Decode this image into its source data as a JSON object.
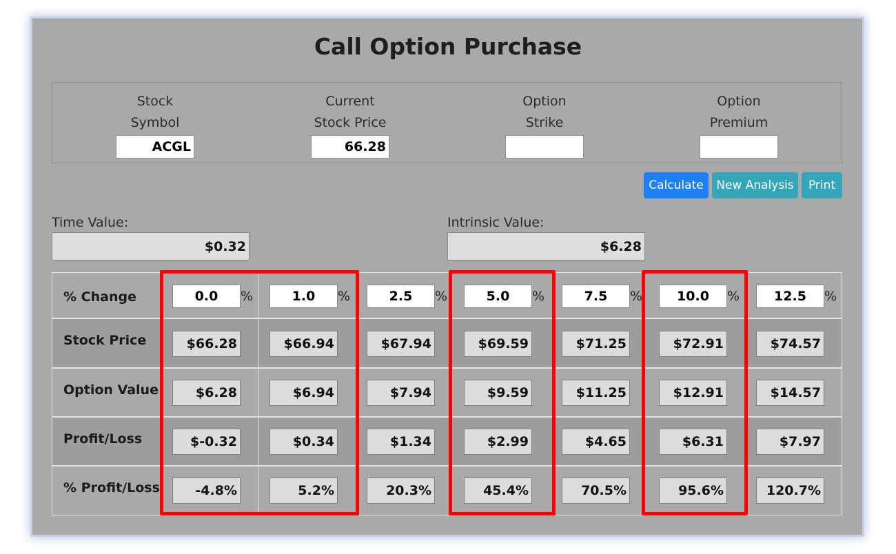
{
  "title": "Call Option Purchase",
  "inputs": [
    {
      "label1": "Stock",
      "label2": "Symbol",
      "value": "ACGL"
    },
    {
      "label1": "Current",
      "label2": "Stock Price",
      "value": "66.28"
    },
    {
      "label1": "Option",
      "label2": "Strike",
      "value": ""
    },
    {
      "label1": "Option",
      "label2": "Premium",
      "value": ""
    }
  ],
  "buttons": {
    "calculate": "Calculate",
    "new_analysis": "New Analysis",
    "print": "Print"
  },
  "time_value": {
    "label": "Time Value:",
    "value": "$0.32"
  },
  "intrinsic_value": {
    "label": "Intrinsic Value:",
    "value": "$6.28"
  },
  "table": {
    "row_labels": [
      "% Change",
      "Stock Price",
      "Option Value",
      "Profit/Loss",
      "% Profit/Loss"
    ],
    "percent_sign": "%",
    "pct_change": [
      "0.0",
      "1.0",
      "2.5",
      "5.0",
      "7.5",
      "10.0",
      "12.5"
    ],
    "stock_price": [
      "$66.28",
      "$66.94",
      "$67.94",
      "$69.59",
      "$71.25",
      "$72.91",
      "$74.57"
    ],
    "option_value": [
      "$6.28",
      "$6.94",
      "$7.94",
      "$9.59",
      "$11.25",
      "$12.91",
      "$14.57"
    ],
    "profit_loss": [
      "$-0.32",
      "$0.34",
      "$1.34",
      "$2.99",
      "$4.65",
      "$6.31",
      "$7.97"
    ],
    "pct_profit_loss": [
      "-4.8%",
      "5.2%",
      "20.3%",
      "45.4%",
      "70.5%",
      "95.6%",
      "120.7%"
    ]
  },
  "colors": {
    "panel_bg": "#a9a9a9",
    "calculate_button": "#1d80f3",
    "secondary_button": "#34a6b8",
    "highlight": "#ff0000"
  }
}
